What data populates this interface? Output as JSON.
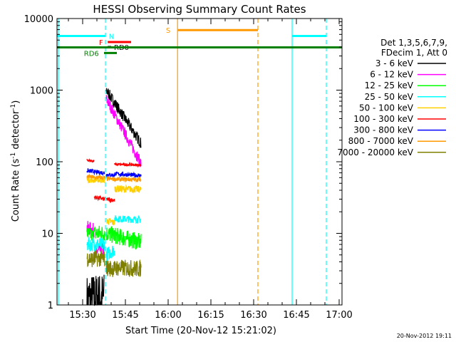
{
  "chart_data": {
    "type": "line",
    "title": "HESSI Observing Summary Count Rates",
    "xlabel": "Start Time (20-Nov-12 15:21:02)",
    "ylabel_main": "Count Rate (s",
    "ylabel_sup": "-1",
    "ylabel_mid": " detector",
    "ylabel_sup2": "-1",
    "ylabel_end": ")",
    "xlim_min": [
      21,
      101
    ],
    "ylim": [
      1,
      10000
    ],
    "yscale": "log",
    "x_ticks": [
      {
        "min": 30,
        "label": "15:30"
      },
      {
        "min": 45,
        "label": "15:45"
      },
      {
        "min": 60,
        "label": "16:00"
      },
      {
        "min": 75,
        "label": "16:15"
      },
      {
        "min": 90,
        "label": "16:30"
      },
      {
        "min": 105,
        "label": "16:45"
      },
      {
        "min": 120,
        "label": "17:00"
      }
    ],
    "y_ticks": [
      {
        "value": 1,
        "label": "1"
      },
      {
        "value": 10,
        "label": "10"
      },
      {
        "value": 100,
        "label": "100"
      },
      {
        "value": 1000,
        "label": "1000"
      },
      {
        "value": 10000,
        "label": "10000"
      }
    ],
    "legend_header": [
      "Det 1,3,5,6,7,9,",
      "FDecim 1, Att 0"
    ],
    "legend": [
      {
        "label": "3 - 6 keV",
        "color": "#000000"
      },
      {
        "label": "6 - 12 keV",
        "color": "#ff00ff"
      },
      {
        "label": "12 - 25 keV",
        "color": "#00ff00"
      },
      {
        "label": "25 - 50 keV",
        "color": "#00ffff"
      },
      {
        "label": "50 - 100 keV",
        "color": "#ffd000"
      },
      {
        "label": "100 - 300 keV",
        "color": "#ff0000"
      },
      {
        "label": "300 - 800 keV",
        "color": "#0000ff"
      },
      {
        "label": "800 - 7000 keV",
        "color": "#ff9900"
      },
      {
        "label": "7000 - 20000 keV",
        "color": "#808000"
      }
    ],
    "series": [
      {
        "name": "3 - 6 keV",
        "color": "#000000",
        "segments": [
          {
            "t0": 31.5,
            "t1": 37.5,
            "start": 1.2,
            "end": 1.3,
            "noise": 0.35
          },
          {
            "t0": 38.3,
            "t1": 50.5,
            "start": 1000,
            "end": 180,
            "noise": 0.08
          }
        ]
      },
      {
        "name": "6 - 12 keV",
        "color": "#ff00ff",
        "segments": [
          {
            "t0": 31.5,
            "t1": 34.0,
            "start": 12,
            "end": 11,
            "noise": 0.1
          },
          {
            "t0": 34.0,
            "t1": 37.8,
            "start": 5.5,
            "end": 6,
            "noise": 0.1
          },
          {
            "t0": 38.3,
            "t1": 50.5,
            "start": 750,
            "end": 95,
            "noise": 0.08
          }
        ]
      },
      {
        "name": "12 - 25 keV",
        "color": "#00ff00",
        "segments": [
          {
            "t0": 31.5,
            "t1": 34.0,
            "start": 10,
            "end": 9,
            "noise": 0.1
          },
          {
            "t0": 34.0,
            "t1": 37.8,
            "start": 10,
            "end": 10,
            "noise": 0.12
          },
          {
            "t0": 38.3,
            "t1": 50.5,
            "start": 10,
            "end": 7.5,
            "noise": 0.12
          }
        ]
      },
      {
        "name": "25 - 50 keV",
        "color": "#00ffff",
        "segments": [
          {
            "t0": 31.5,
            "t1": 34.0,
            "start": 7,
            "end": 7,
            "noise": 0.1
          },
          {
            "t0": 34.0,
            "t1": 37.8,
            "start": 7,
            "end": 7,
            "noise": 0.1
          },
          {
            "t0": 38.3,
            "t1": 41.2,
            "start": 5,
            "end": 6,
            "noise": 0.1
          },
          {
            "t0": 41.2,
            "t1": 50.5,
            "start": 16,
            "end": 15.5,
            "noise": 0.05
          }
        ]
      },
      {
        "name": "50 - 100 keV",
        "color": "#ffd000",
        "segments": [
          {
            "t0": 31.5,
            "t1": 34.0,
            "start": 56,
            "end": 55,
            "noise": 0.04
          },
          {
            "t0": 34.0,
            "t1": 37.8,
            "start": 56,
            "end": 55,
            "noise": 0.04
          },
          {
            "t0": 38.3,
            "t1": 41.2,
            "start": 15,
            "end": 14,
            "noise": 0.05
          },
          {
            "t0": 41.2,
            "t1": 50.5,
            "start": 42,
            "end": 41,
            "noise": 0.05
          }
        ]
      },
      {
        "name": "100 - 300 keV",
        "color": "#ff0000",
        "segments": [
          {
            "t0": 31.5,
            "t1": 34.0,
            "start": 105,
            "end": 102,
            "noise": 0.02
          },
          {
            "t0": 34.0,
            "t1": 37.8,
            "start": 32,
            "end": 30,
            "noise": 0.03
          },
          {
            "t0": 38.3,
            "t1": 41.2,
            "start": 30,
            "end": 29,
            "noise": 0.03
          },
          {
            "t0": 41.2,
            "t1": 50.5,
            "start": 92,
            "end": 90,
            "noise": 0.02
          }
        ]
      },
      {
        "name": "300 - 800 keV",
        "color": "#0000ff",
        "segments": [
          {
            "t0": 31.5,
            "t1": 34.0,
            "start": 75,
            "end": 73,
            "noise": 0.03
          },
          {
            "t0": 34.0,
            "t1": 37.8,
            "start": 72,
            "end": 70,
            "noise": 0.03
          },
          {
            "t0": 38.3,
            "t1": 41.2,
            "start": 66,
            "end": 65,
            "noise": 0.03
          },
          {
            "t0": 41.2,
            "t1": 50.5,
            "start": 68,
            "end": 64,
            "noise": 0.03
          }
        ]
      },
      {
        "name": "800 - 7000 keV",
        "color": "#ff9900",
        "segments": [
          {
            "t0": 31.5,
            "t1": 34.0,
            "start": 62,
            "end": 61,
            "noise": 0.03
          },
          {
            "t0": 34.0,
            "t1": 37.8,
            "start": 60,
            "end": 60,
            "noise": 0.03
          },
          {
            "t0": 38.3,
            "t1": 41.2,
            "start": 58,
            "end": 57,
            "noise": 0.03
          },
          {
            "t0": 41.2,
            "t1": 50.5,
            "start": 57,
            "end": 56,
            "noise": 0.03
          }
        ]
      },
      {
        "name": "7000 - 20000 keV",
        "color": "#808000",
        "segments": [
          {
            "t0": 31.5,
            "t1": 34.0,
            "start": 4.5,
            "end": 4.3,
            "noise": 0.12
          },
          {
            "t0": 34.0,
            "t1": 37.8,
            "start": 4.5,
            "end": 4.4,
            "noise": 0.12
          },
          {
            "t0": 38.3,
            "t1": 41.2,
            "start": 3.3,
            "end": 3.2,
            "noise": 0.12
          },
          {
            "t0": 41.2,
            "t1": 50.5,
            "start": 3.3,
            "end": 3.2,
            "noise": 0.12
          }
        ]
      }
    ],
    "night_boundaries": [
      {
        "min": 21.5,
        "style": "solid",
        "color": "#00ffff"
      },
      {
        "min": 38.0,
        "style": "dashed",
        "color": "#00ffff"
      },
      {
        "min": 103.5,
        "style": "solid",
        "color": "#00ffff"
      },
      {
        "min": 115.5,
        "style": "dashed",
        "color": "#00ffff"
      }
    ],
    "saa_boundaries": [
      {
        "min": 63.3,
        "style": "solid",
        "color": "#ff9900"
      },
      {
        "min": 91.5,
        "style": "dashed",
        "color": "#ff9900"
      }
    ],
    "flag_bars": [
      {
        "label": "N",
        "color": "#00ffff",
        "t0": 21,
        "t1": 38.0,
        "y": 5700,
        "label_min": 39.2,
        "label_side": "right"
      },
      {
        "label": "",
        "color": "#00ffff",
        "t0": 103.5,
        "t1": 115.5,
        "y": 5700
      },
      {
        "label": "F",
        "color": "#ff0000",
        "t0": 38.8,
        "t1": 47.0,
        "y": 4700,
        "label_min": 37.2,
        "label_side": "left"
      },
      {
        "label": "RD0",
        "color": "#000000",
        "t0": 38.8,
        "t1": 40.0,
        "y": 4000,
        "label_min": 41.0,
        "label_side": "right"
      },
      {
        "label": "",
        "color": "#008000",
        "t0": 21,
        "t1": 121,
        "y": 3950
      },
      {
        "label": "RD6",
        "color": "#008000",
        "t0": 37.5,
        "t1": 42.0,
        "y": 3300,
        "label_min": 35.7,
        "label_side": "left"
      },
      {
        "label": "S",
        "color": "#ff9900",
        "t0": 63.3,
        "t1": 91.5,
        "y": 6900,
        "label_min": 60.8,
        "label_side": "left"
      }
    ],
    "timestamp": "20-Nov-2012 19:11"
  }
}
